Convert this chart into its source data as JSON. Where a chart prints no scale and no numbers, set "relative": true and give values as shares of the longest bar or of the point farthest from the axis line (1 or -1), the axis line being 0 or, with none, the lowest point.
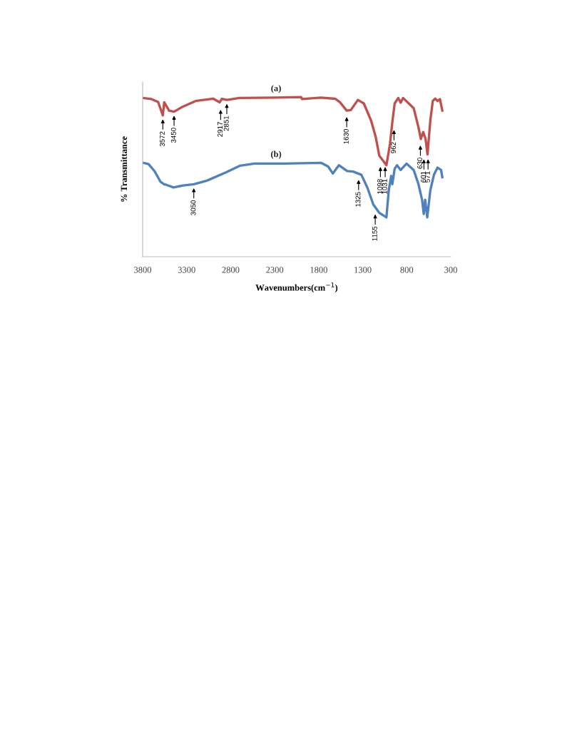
{
  "chart_data": {
    "type": "line",
    "relative": true,
    "xlabel": "Wavenumbers(cm$^{−1}$)",
    "ylabel": "% Transmittance",
    "xlim": [
      3800,
      300
    ],
    "xticks": [
      3800,
      3300,
      2800,
      2300,
      1800,
      1300,
      800,
      300
    ],
    "tick_labels": "x",
    "grid": false,
    "legend": false,
    "marker": "none",
    "line_style": "solid",
    "series": [
      {
        "name": "(a)",
        "color": "#c0504d",
        "x": [
          3800,
          3700,
          3624,
          3571,
          3555,
          3500,
          3443,
          3350,
          3200,
          3000,
          2925,
          2900,
          2844,
          2700,
          2300,
          2000,
          1990,
          1774,
          1612,
          1558,
          1482,
          1436,
          1355,
          1288,
          1207,
          1153,
          1112,
          1071,
          1031,
          990,
          964,
          937,
          896,
          869,
          842,
          721,
          667,
          640,
          613,
          586,
          564,
          532,
          504,
          477,
          450,
          423,
          396
        ],
        "values": [
          0.994,
          0.987,
          0.969,
          0.885,
          0.967,
          0.915,
          0.908,
          0.938,
          0.975,
          0.99,
          0.967,
          0.989,
          0.982,
          0.994,
          0.996,
          1.0,
          0.987,
          0.996,
          0.989,
          0.967,
          0.915,
          0.918,
          0.982,
          0.96,
          0.855,
          0.751,
          0.633,
          0.603,
          0.573,
          0.707,
          0.841,
          0.96,
          0.994,
          0.965,
          0.994,
          0.93,
          0.811,
          0.737,
          0.781,
          0.737,
          0.64,
          0.855,
          0.975,
          0.99,
          0.975,
          0.987,
          0.915
        ]
      },
      {
        "name": "(b)",
        "color": "#4f81bd",
        "x": [
          3794,
          3733,
          3665,
          3597,
          3557,
          3530,
          3449,
          3341,
          3219,
          3071,
          2854,
          2692,
          2530,
          2179,
          1774,
          1693,
          1639,
          1571,
          1477,
          1409,
          1315,
          1247,
          1180,
          1112,
          1031,
          1004,
          977,
          964,
          937,
          910,
          869,
          802,
          721,
          667,
          626,
          607,
          591,
          567,
          532,
          491,
          450,
          410,
          396
        ],
        "values": [
          0.588,
          0.58,
          0.536,
          0.469,
          0.454,
          0.45,
          0.434,
          0.446,
          0.454,
          0.476,
          0.528,
          0.57,
          0.583,
          0.583,
          0.588,
          0.565,
          0.521,
          0.573,
          0.536,
          0.533,
          0.513,
          0.432,
          0.327,
          0.275,
          0.246,
          0.417,
          0.506,
          0.454,
          0.551,
          0.573,
          0.543,
          0.583,
          0.543,
          0.454,
          0.357,
          0.268,
          0.357,
          0.246,
          0.417,
          0.513,
          0.558,
          0.543,
          0.498
        ]
      }
    ],
    "annotations": [
      {
        "text": "3572",
        "x": 3571,
        "y": 0.885
      },
      {
        "text": "3450",
        "x": 3443,
        "y": 0.908
      },
      {
        "text": "2917",
        "x": 2914,
        "y": 0.945
      },
      {
        "text": "2851",
        "x": 2844,
        "y": 0.982
      },
      {
        "text": "1630",
        "x": 1482,
        "y": 0.9
      },
      {
        "text": "962",
        "x": 945,
        "y": 0.818
      },
      {
        "text": "1098",
        "x": 1099,
        "y": 0.587
      },
      {
        "text": "1031",
        "x": 1045,
        "y": 0.587
      },
      {
        "text": "630",
        "x": 645,
        "y": 0.721
      },
      {
        "text": "601",
        "x": 605,
        "y": 0.635
      },
      {
        "text": "571",
        "x": 558,
        "y": 0.635
      },
      {
        "text": "3050",
        "x": 3219,
        "y": 0.454
      },
      {
        "text": "1325",
        "x": 1347,
        "y": 0.506
      },
      {
        "text": "1155",
        "x": 1158,
        "y": 0.29
      }
    ]
  }
}
